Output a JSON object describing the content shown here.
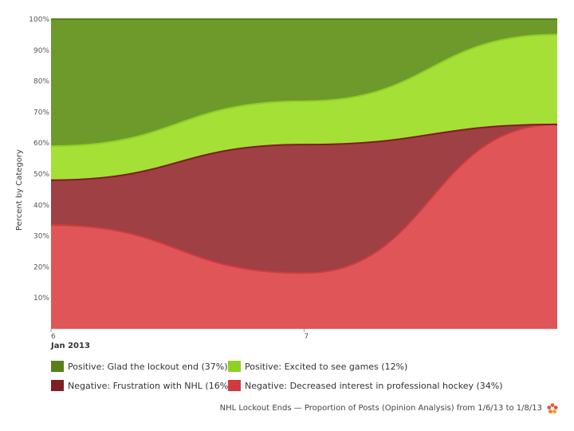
{
  "chart_data": {
    "type": "area",
    "stacked": true,
    "ylabel": "Percent by Category",
    "xlabel": "",
    "x_ticks": [
      "6",
      "7"
    ],
    "x_sublabel": "Jan 2013",
    "y_ticks": [
      "10%",
      "20%",
      "30%",
      "40%",
      "50%",
      "60%",
      "70%",
      "80%",
      "90%",
      "100%"
    ],
    "ylim": [
      0,
      100
    ],
    "x": [
      "Jan 6, 2013",
      "Jan 7, 2013",
      "Jan 8, 2013"
    ],
    "series": [
      {
        "name": "Negative: Decreased interest in professional hockey (34%)",
        "color": "#e05558",
        "values": [
          33.5,
          18,
          66
        ]
      },
      {
        "name": "Negative: Frustration with NHL (16%)",
        "color": "#9e4044",
        "values": [
          14.5,
          41.5,
          0
        ]
      },
      {
        "name": "Positive: Excited to see games (12%)",
        "color": "#a5e036",
        "values": [
          11,
          14,
          29
        ]
      },
      {
        "name": "Positive: Glad the lockout end (37%)",
        "color": "#6e9a2c",
        "values": [
          41,
          26.5,
          5
        ]
      }
    ]
  },
  "legend": [
    {
      "label": "Positive: Glad the lockout end (37%)",
      "color": "#587f1a"
    },
    {
      "label": "Positive: Excited to see games (12%)",
      "color": "#8fd024"
    },
    {
      "label": "Negative: Frustration with NHL (16%)",
      "color": "#7e1f25"
    },
    {
      "label": "Negative: Decreased interest in professional hockey (34%)",
      "color": "#cf3b40"
    }
  ],
  "caption": "NHL Lockout Ends — Proportion of Posts (Opinion Analysis) from 1/6/13 to 1/8/13",
  "icons": {
    "caption_icon": "flower-logo-icon"
  }
}
